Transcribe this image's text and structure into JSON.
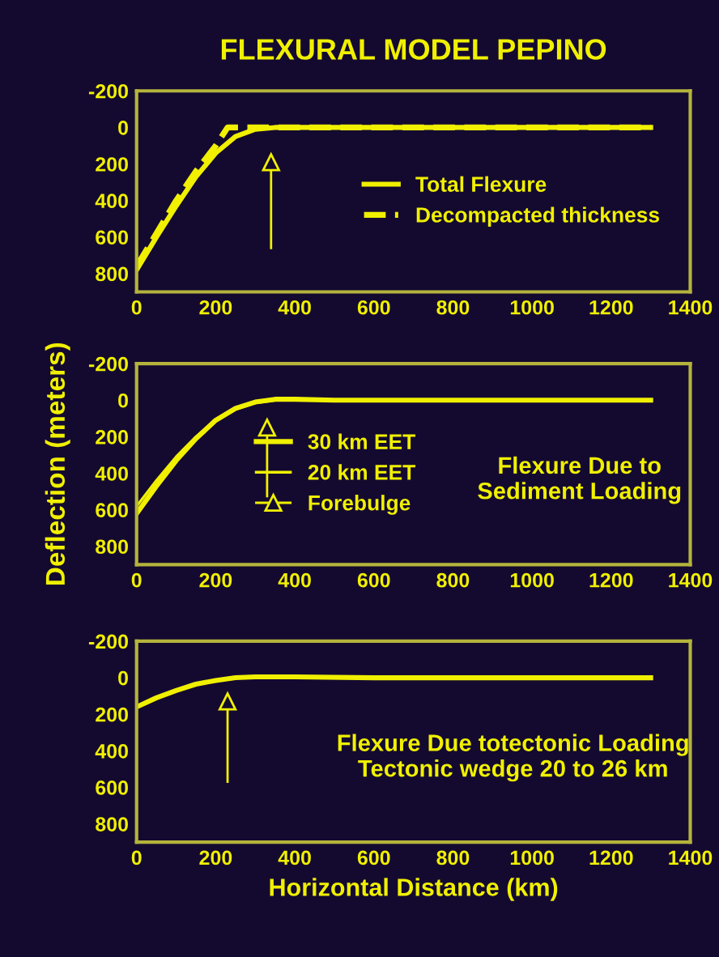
{
  "chart_data": [
    {
      "type": "line",
      "title": "FLEXURAL MODEL PEPINO",
      "xlim": [
        0,
        1400
      ],
      "ylim": [
        900,
        -200
      ],
      "xticks": [
        0,
        200,
        400,
        600,
        800,
        1000,
        1200,
        1400
      ],
      "yticks": [
        -200,
        0,
        200,
        400,
        600,
        800
      ],
      "grid": false,
      "legend": "right",
      "series": [
        {
          "name": "Total Flexure",
          "color": "#f0f000",
          "line_style": "solid",
          "x": [
            0,
            50,
            100,
            150,
            200,
            250,
            300,
            350,
            400,
            600,
            800,
            1000,
            1300
          ],
          "values": [
            780,
            600,
            430,
            270,
            140,
            50,
            10,
            0,
            0,
            0,
            0,
            0,
            0
          ]
        },
        {
          "name": "Decompacted thickness",
          "color": "#f0f000",
          "line_style": "dashed",
          "x": [
            0,
            50,
            100,
            150,
            200,
            230,
            250,
            300,
            400,
            600,
            800,
            1000,
            1300
          ],
          "values": [
            760,
            580,
            400,
            240,
            100,
            0,
            0,
            0,
            0,
            0,
            0,
            0,
            0
          ]
        },
        {
          "type": "line",
          "marker": "triangle",
          "color": "#f0f000",
          "line_style": "solid",
          "x": [
            340,
            340
          ],
          "values": [
            660,
            190
          ]
        }
      ]
    },
    {
      "type": "line",
      "ylabel": "Deflection (meters)",
      "xlim": [
        0,
        1400
      ],
      "ylim": [
        900,
        -200
      ],
      "xticks": [
        0,
        200,
        400,
        600,
        800,
        1000,
        1200,
        1400
      ],
      "yticks": [
        -200,
        0,
        200,
        400,
        600,
        800
      ],
      "grid": false,
      "legend": "center",
      "annotations": [
        "Flexure Due to\nSediment Loading"
      ],
      "series": [
        {
          "name": "30 km EET",
          "color": "#f0f000",
          "line_style": "solid",
          "x": [
            0,
            50,
            100,
            150,
            200,
            250,
            300,
            350,
            400,
            500,
            800,
            1000,
            1300
          ],
          "values": [
            620,
            470,
            330,
            210,
            110,
            45,
            10,
            -5,
            -5,
            0,
            0,
            0,
            0
          ]
        },
        {
          "name": "20 km EET",
          "color": "#f0f000",
          "line_style": "solid",
          "x": [
            0,
            50,
            100,
            150,
            200,
            250,
            300,
            350,
            400,
            500,
            800,
            1000,
            1300
          ],
          "values": [
            580,
            440,
            310,
            200,
            110,
            50,
            15,
            0,
            0,
            0,
            0,
            0,
            0
          ]
        },
        {
          "name": "Forebulge",
          "type": "line",
          "marker": "triangle",
          "color": "#f0f000",
          "line_style": "solid",
          "x": [
            330,
            330
          ],
          "values": [
            525,
            150
          ]
        }
      ]
    },
    {
      "type": "line",
      "xlabel": "Horizontal Distance (km)",
      "xlim": [
        0,
        1400
      ],
      "ylim": [
        900,
        -200
      ],
      "xticks": [
        0,
        200,
        400,
        600,
        800,
        1000,
        1200,
        1400
      ],
      "yticks": [
        -200,
        0,
        200,
        400,
        600,
        800
      ],
      "grid": false,
      "annotations": [
        "Flexure Due totectonic Loading\nTectonic wedge 20 to 26 km"
      ],
      "series": [
        {
          "color": "#f0f000",
          "line_style": "solid",
          "x": [
            0,
            50,
            100,
            150,
            200,
            250,
            300,
            400,
            600,
            800,
            1000,
            1300
          ],
          "values": [
            160,
            110,
            70,
            35,
            15,
            0,
            -5,
            -5,
            0,
            0,
            0,
            0
          ]
        },
        {
          "type": "line",
          "marker": "triangle",
          "color": "#f0f000",
          "line_style": "solid",
          "x": [
            230,
            230
          ],
          "values": [
            570,
            130
          ]
        }
      ]
    }
  ]
}
